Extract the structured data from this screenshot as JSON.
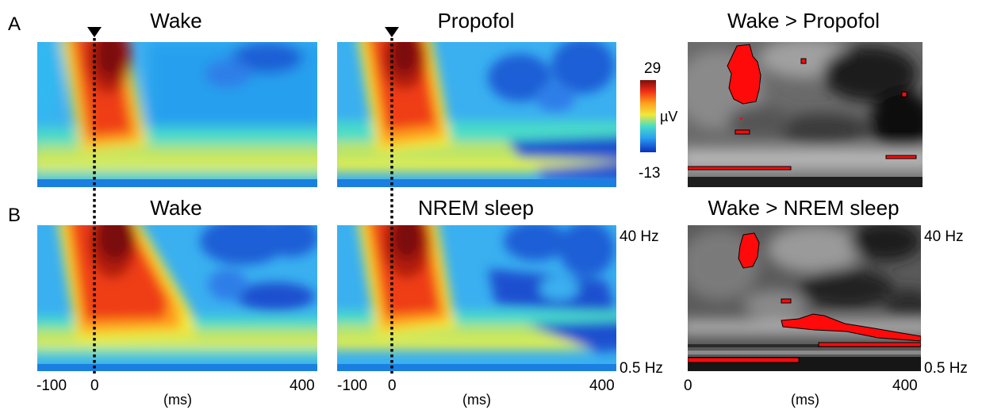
{
  "panels": {
    "a_label": "A",
    "b_label": "B",
    "a_titles": [
      "Wake",
      "Propofol",
      "Wake > Propofol"
    ],
    "b_titles": [
      "Wake",
      "NREM sleep",
      "Wake > NREM sleep"
    ]
  },
  "colorbar": {
    "max": "29",
    "min": "-13",
    "unit": "µV"
  },
  "axes": {
    "x_ticks_left": [
      "-100",
      "0",
      "400"
    ],
    "x_ticks_right": [
      "0",
      "400"
    ],
    "x_unit": "(ms)",
    "y_top": "40 Hz",
    "y_bottom": "0.5 Hz"
  },
  "colors": {
    "heat_peak": "#7a0f0a",
    "heat_low": "#0a2fbf",
    "significance": "#ff0a0a",
    "stat_background": "#3a3a3a"
  },
  "icons": [
    "stimulus-onset-triangle-icon"
  ]
}
